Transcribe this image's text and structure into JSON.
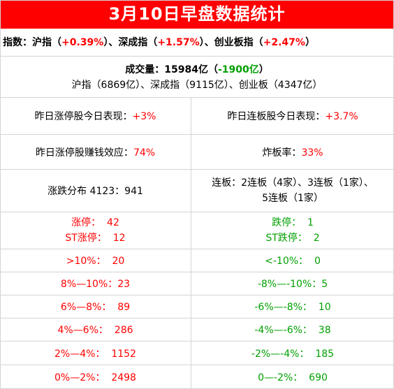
{
  "title": "3月10日早盘数据统计",
  "indices": {
    "prefix": "指数：",
    "sh_label": "沪指（",
    "sh_value": "+0.39%",
    "sh_close": "）、",
    "sz_label": "深成指（",
    "sz_value": "+1.57%",
    "sz_close": "）、",
    "cy_label": "创业板指（",
    "cy_value": "+2.47%",
    "cy_close": "）"
  },
  "volume": {
    "label": "成交量：15984亿（",
    "change": "-1900亿",
    "close": "）",
    "detail": "沪指（6869亿）、深成指（9115亿）、创业板（4347亿）"
  },
  "stats": {
    "limitup_perf_label": "昨日涨停股今日表现：",
    "limitup_perf_value": "+3%",
    "consec_perf_label": "昨日连板股今日表现：",
    "consec_perf_value": "+3.7%",
    "profit_label": "昨日涨停股赚钱效应：",
    "profit_value": "74%",
    "break_label": "炸板率：",
    "break_value": "33%",
    "dist_text": "涨跌分布 4123：941",
    "consec_line1": "连板：2连板（4家）、3连板（1家）、",
    "consec_line2": "5连板（1家）"
  },
  "rows": [
    {
      "left": "涨停：  42",
      "left2": "ST涨停：  12",
      "right": "跌停：  1",
      "right2": "ST跌停：  2"
    },
    {
      "left": ">10%：  20",
      "right": "<-10%：  0"
    },
    {
      "left": "8%—10%：23",
      "right": "-8%—-10%：5"
    },
    {
      "left": "6%—8%：  89",
      "right": "-6%—-8%：  10"
    },
    {
      "left": "4%—6%：  286",
      "right": "-4%—-6%：  38"
    },
    {
      "left": "2%—4%：  1152",
      "right": "-2%—-4%：  185"
    },
    {
      "left": "0%—2%：  2498",
      "right": "0—-2%：  690"
    }
  ],
  "colors": {
    "up": "#ff0000",
    "down": "#00a000",
    "header_bg": "#ff0000"
  }
}
